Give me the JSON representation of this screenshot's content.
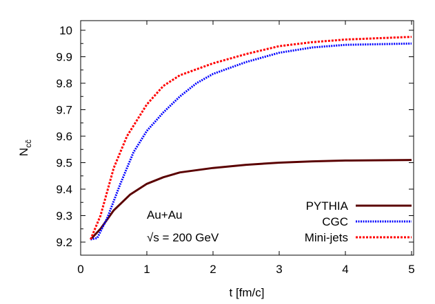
{
  "chart_data": {
    "type": "line",
    "xlabel": "t [fm/c]",
    "ylabel": "N_cc̄",
    "ylabel_main": "N",
    "ylabel_sub": "cc̄",
    "xlim": [
      0,
      5.05
    ],
    "ylim": [
      9.15,
      10.04
    ],
    "xticks": [
      0,
      1,
      2,
      3,
      4,
      5
    ],
    "yticks": [
      9.2,
      9.3,
      9.4,
      9.5,
      9.6,
      9.7,
      9.8,
      9.9,
      10
    ],
    "ytick_labels": [
      "9.2",
      "9.3",
      "9.4",
      "9.5",
      "9.6",
      "9.7",
      "9.8",
      "9.9",
      "10"
    ],
    "grid": false,
    "legend_placement": "bottom-right",
    "annotations": [
      "Au+Au",
      "√s = 200 GeV"
    ],
    "series": [
      {
        "name": "PYTHIA",
        "color": "#5a0000",
        "style": "solid",
        "x": [
          0.15,
          0.3,
          0.5,
          0.75,
          1,
          1.25,
          1.5,
          2,
          2.5,
          3,
          3.5,
          4,
          5
        ],
        "y": [
          9.21,
          9.25,
          9.32,
          9.38,
          9.42,
          9.445,
          9.463,
          9.48,
          9.492,
          9.5,
          9.505,
          9.508,
          9.51
        ]
      },
      {
        "name": "CGC",
        "color": "#0000ff",
        "style": "dotted",
        "x": [
          0.15,
          0.25,
          0.4,
          0.6,
          0.8,
          1,
          1.25,
          1.5,
          1.75,
          2,
          2.5,
          3,
          3.5,
          4,
          5
        ],
        "y": [
          9.21,
          9.215,
          9.29,
          9.42,
          9.54,
          9.62,
          9.69,
          9.75,
          9.8,
          9.835,
          9.88,
          9.915,
          9.935,
          9.945,
          9.95
        ]
      },
      {
        "name": "Mini-jets",
        "color": "#ff0000",
        "style": "dashed-dotted",
        "x": [
          0.15,
          0.3,
          0.5,
          0.7,
          1,
          1.25,
          1.5,
          2,
          2.5,
          3,
          3.5,
          4,
          5
        ],
        "y": [
          9.21,
          9.3,
          9.48,
          9.6,
          9.72,
          9.79,
          9.83,
          9.875,
          9.91,
          9.94,
          9.955,
          9.965,
          9.975
        ]
      }
    ]
  }
}
